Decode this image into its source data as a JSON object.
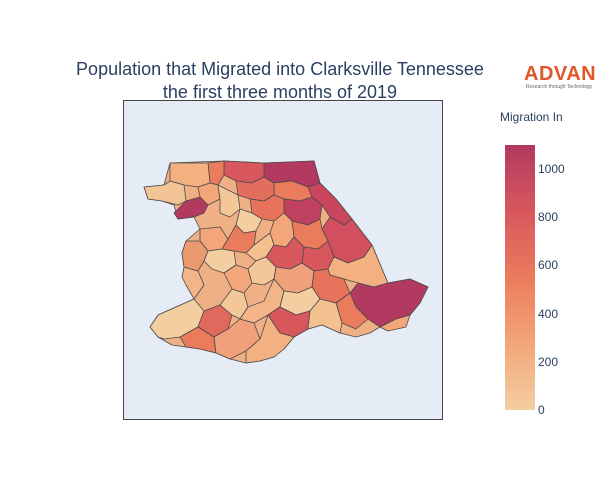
{
  "title": {
    "line1": "Population that Migrated into Clarksville Tennessee",
    "line2": "the first three months of 2019"
  },
  "logo": {
    "name": "ADVAN",
    "tagline": "Research through Technology"
  },
  "colorbar": {
    "title": "Migration In",
    "ticks": [
      "0",
      "200",
      "400",
      "600",
      "800",
      "1000"
    ],
    "scale": [
      "#f3cea0",
      "#f3a67a",
      "#eb7b5d",
      "#d8575d",
      "#b23a60"
    ],
    "range": [
      0,
      1100
    ]
  },
  "map": {
    "background": "#e5ecf6",
    "border_color": "#444444",
    "region_stroke": "#4a4a4a",
    "region_count": 44
  }
}
